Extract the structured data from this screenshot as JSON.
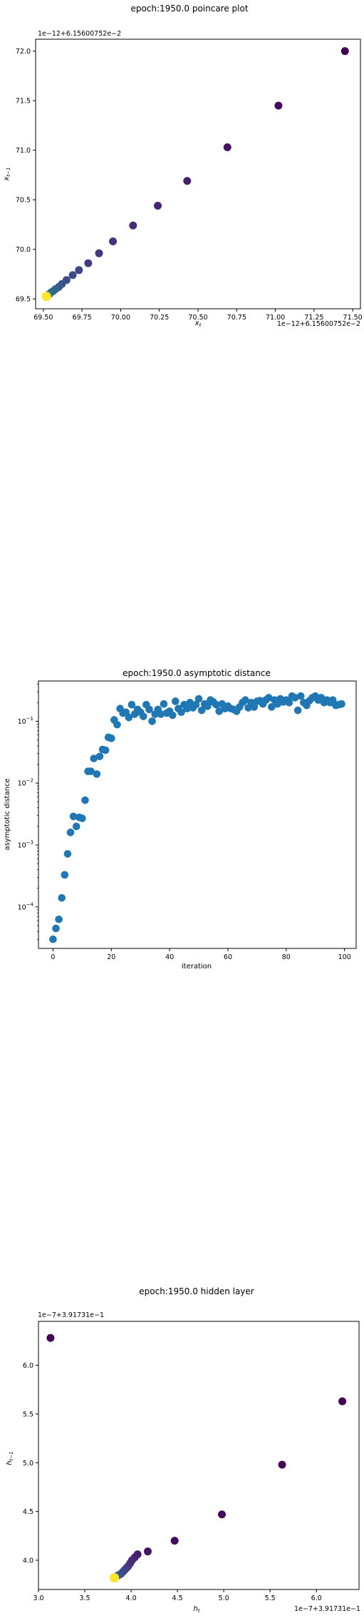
{
  "chart_data": [
    {
      "type": "scatter",
      "title": "epoch:1950.0 poincare plot",
      "xlabel": "x_t",
      "ylabel": "x_{t-1}",
      "x_offset_label": "1e−12+6.15600752e−2",
      "y_offset_label": "1e−12+6.15600752e−2",
      "xlim": [
        69.45,
        71.55
      ],
      "ylim": [
        69.4,
        72.12
      ],
      "xticks": [
        69.5,
        69.75,
        70.0,
        70.25,
        70.5,
        70.75,
        71.0,
        71.25,
        71.5
      ],
      "xtick_labels": [
        "69.50",
        "69.75",
        "70.00",
        "70.25",
        "70.50",
        "70.75",
        "71.00",
        "71.25",
        "71.50"
      ],
      "yticks": [
        69.5,
        70.0,
        70.5,
        71.0,
        71.5,
        72.0
      ],
      "ytick_labels": [
        "69.5",
        "70.0",
        "70.5",
        "71.0",
        "71.5",
        "72.0"
      ],
      "colormap": "viridis",
      "points": [
        {
          "x": 71.45,
          "y": 72.0,
          "c": 0.0
        },
        {
          "x": 71.02,
          "y": 71.45,
          "c": 0.03
        },
        {
          "x": 70.69,
          "y": 71.03,
          "c": 0.05
        },
        {
          "x": 70.43,
          "y": 70.69,
          "c": 0.08
        },
        {
          "x": 70.24,
          "y": 70.44,
          "c": 0.1
        },
        {
          "x": 70.08,
          "y": 70.24,
          "c": 0.12
        },
        {
          "x": 69.95,
          "y": 70.08,
          "c": 0.14
        },
        {
          "x": 69.86,
          "y": 69.96,
          "c": 0.16
        },
        {
          "x": 69.79,
          "y": 69.86,
          "c": 0.18
        },
        {
          "x": 69.73,
          "y": 69.79,
          "c": 0.2
        },
        {
          "x": 69.69,
          "y": 69.74,
          "c": 0.22
        },
        {
          "x": 69.65,
          "y": 69.69,
          "c": 0.24
        },
        {
          "x": 69.62,
          "y": 69.65,
          "c": 0.26
        },
        {
          "x": 69.6,
          "y": 69.62,
          "c": 0.28
        },
        {
          "x": 69.58,
          "y": 69.6,
          "c": 0.3
        },
        {
          "x": 69.565,
          "y": 69.58,
          "c": 0.32
        },
        {
          "x": 69.55,
          "y": 69.565,
          "c": 0.34
        },
        {
          "x": 69.54,
          "y": 69.55,
          "c": 0.36
        },
        {
          "x": 69.53,
          "y": 69.54,
          "c": 0.38
        },
        {
          "x": 69.525,
          "y": 69.53,
          "c": 0.4
        },
        {
          "x": 69.52,
          "y": 69.525,
          "c": 1.0
        }
      ]
    },
    {
      "type": "scatter",
      "title": "epoch:1950.0 asymptotic distance",
      "xlabel": "iteration",
      "ylabel": "asymptotic distance",
      "yscale": "log",
      "xlim": [
        -5,
        104
      ],
      "ylim_log10": [
        -4.67,
        -0.35
      ],
      "xticks": [
        0,
        20,
        40,
        60,
        80,
        100
      ],
      "xtick_labels": [
        "0",
        "20",
        "40",
        "60",
        "80",
        "100"
      ],
      "ytick_exponents": [
        -4,
        -3,
        -2,
        -1
      ],
      "ytick_labels": [
        "10",
        "10",
        "10",
        "10"
      ],
      "ytick_label_exponents": [
        "−4",
        "−3",
        "−2",
        "−1"
      ],
      "color": "#1f77b4",
      "x": [
        0,
        1,
        2,
        3,
        4,
        5,
        6,
        7,
        8,
        9,
        10,
        11,
        12,
        13,
        14,
        15,
        16,
        17,
        18,
        19,
        20,
        21,
        22,
        23,
        24,
        25,
        26,
        27,
        28,
        29,
        30,
        31,
        32,
        33,
        34,
        35,
        36,
        37,
        38,
        39,
        40,
        41,
        42,
        43,
        44,
        45,
        46,
        47,
        48,
        49,
        50,
        51,
        52,
        53,
        54,
        55,
        56,
        57,
        58,
        59,
        60,
        61,
        62,
        63,
        64,
        65,
        66,
        67,
        68,
        69,
        70,
        71,
        72,
        73,
        74,
        75,
        76,
        77,
        78,
        79,
        80,
        81,
        82,
        83,
        84,
        85,
        86,
        87,
        88,
        89,
        90,
        91,
        92,
        93,
        94,
        95,
        96,
        97,
        98,
        99
      ],
      "y": [
        3e-05,
        4.5e-05,
        6.3e-05,
        0.00014,
        0.00033,
        0.00072,
        0.0016,
        0.0029,
        0.002,
        0.0028,
        0.0027,
        0.0053,
        0.0155,
        0.0155,
        0.025,
        0.014,
        0.027,
        0.035,
        0.034,
        0.055,
        0.053,
        0.105,
        0.088,
        0.16,
        0.135,
        0.14,
        0.115,
        0.185,
        0.13,
        0.155,
        0.14,
        0.12,
        0.185,
        0.155,
        0.1,
        0.13,
        0.155,
        0.13,
        0.19,
        0.135,
        0.145,
        0.125,
        0.21,
        0.16,
        0.14,
        0.185,
        0.16,
        0.2,
        0.165,
        0.185,
        0.23,
        0.15,
        0.19,
        0.175,
        0.22,
        0.205,
        0.185,
        0.145,
        0.19,
        0.16,
        0.175,
        0.16,
        0.155,
        0.145,
        0.17,
        0.2,
        0.22,
        0.165,
        0.2,
        0.17,
        0.21,
        0.215,
        0.19,
        0.22,
        0.24,
        0.17,
        0.22,
        0.19,
        0.23,
        0.205,
        0.22,
        0.2,
        0.255,
        0.24,
        0.15,
        0.255,
        0.2,
        0.18,
        0.215,
        0.24,
        0.255,
        0.22,
        0.24,
        0.2,
        0.22,
        0.2,
        0.22,
        0.18,
        0.185,
        0.19
      ]
    },
    {
      "type": "scatter",
      "title": "epoch:1950.0 hidden layer",
      "xlabel": "h_t",
      "ylabel": "h_{t-1}",
      "x_offset_label": "1e−7+3.91731e−1",
      "y_offset_label": "1e−7+3.91731e−1",
      "xlim": [
        3.0,
        6.46
      ],
      "ylim": [
        3.7,
        6.45
      ],
      "xticks": [
        3.0,
        3.5,
        4.0,
        4.5,
        5.0,
        5.5,
        6.0
      ],
      "xtick_labels": [
        "3.0",
        "3.5",
        "4.0",
        "4.5",
        "5.0",
        "5.5",
        "6.0"
      ],
      "yticks": [
        4.0,
        4.5,
        5.0,
        5.5,
        6.0
      ],
      "ytick_labels": [
        "4.0",
        "4.5",
        "5.0",
        "5.5",
        "6.0"
      ],
      "colormap": "viridis",
      "points": [
        {
          "x": 3.13,
          "y": 6.28,
          "c": 0.0
        },
        {
          "x": 6.28,
          "y": 5.63,
          "c": 0.0
        },
        {
          "x": 5.63,
          "y": 4.98,
          "c": 0.01
        },
        {
          "x": 4.98,
          "y": 4.47,
          "c": 0.02
        },
        {
          "x": 4.47,
          "y": 4.2,
          "c": 0.03
        },
        {
          "x": 4.18,
          "y": 4.09,
          "c": 0.05
        },
        {
          "x": 4.07,
          "y": 4.06,
          "c": 0.07
        },
        {
          "x": 4.04,
          "y": 4.03,
          "c": 0.09
        },
        {
          "x": 4.01,
          "y": 4.0,
          "c": 0.11
        },
        {
          "x": 3.99,
          "y": 3.97,
          "c": 0.13
        },
        {
          "x": 3.97,
          "y": 3.94,
          "c": 0.15
        },
        {
          "x": 3.95,
          "y": 3.92,
          "c": 0.17
        },
        {
          "x": 3.93,
          "y": 3.9,
          "c": 0.19
        },
        {
          "x": 3.91,
          "y": 3.88,
          "c": 0.21
        },
        {
          "x": 3.89,
          "y": 3.86,
          "c": 0.23
        },
        {
          "x": 3.87,
          "y": 3.85,
          "c": 0.25
        },
        {
          "x": 3.85,
          "y": 3.84,
          "c": 0.27
        },
        {
          "x": 3.83,
          "y": 3.83,
          "c": 0.29
        },
        {
          "x": 3.82,
          "y": 3.82,
          "c": 1.0
        }
      ]
    }
  ]
}
